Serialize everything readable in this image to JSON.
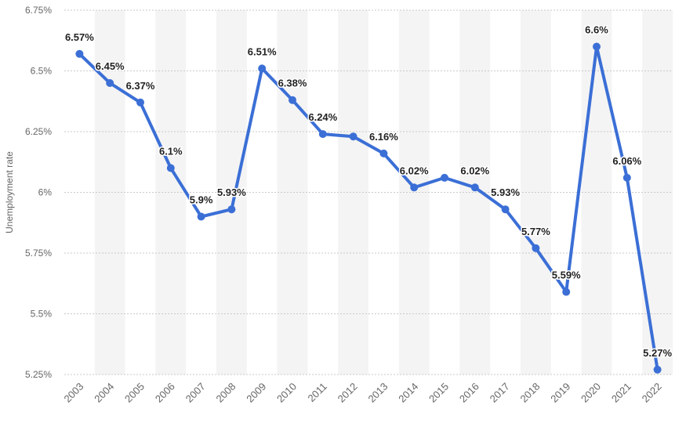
{
  "chart_data": {
    "type": "line",
    "title": "",
    "xlabel": "",
    "ylabel": "Unemployment rate",
    "x": [
      "2003",
      "2004",
      "2005",
      "2006",
      "2007",
      "2008",
      "2009",
      "2010",
      "2011",
      "2012",
      "2013",
      "2014",
      "2015",
      "2016",
      "2017",
      "2018",
      "2019",
      "2020",
      "2021",
      "2022"
    ],
    "series": [
      {
        "values": [
          6.57,
          6.45,
          6.37,
          6.1,
          5.9,
          5.93,
          6.51,
          6.38,
          6.24,
          6.23,
          6.16,
          6.02,
          6.06,
          6.02,
          5.93,
          5.77,
          5.59,
          6.6,
          6.06,
          5.27
        ],
        "labels": [
          "6.57%",
          "6.45%",
          "6.37%",
          "6.1%",
          "5.9%",
          "5.93%",
          "6.51%",
          "6.38%",
          "6.24%",
          "",
          "6.16%",
          "6.02%",
          "",
          "6.02%",
          "5.93%",
          "5.77%",
          "5.59%",
          "6.6%",
          "6.06%",
          "5.27%"
        ]
      }
    ],
    "ylim": [
      5.25,
      6.75
    ],
    "yticks": [
      6.75,
      6.5,
      6.25,
      6.0,
      5.75,
      5.5,
      5.25
    ],
    "ytick_labels": [
      "6.75%",
      "6.5%",
      "6.25%",
      "6%",
      "5.75%",
      "5.5%",
      "5.25%"
    ],
    "grid": true,
    "legend": "none",
    "colors": {
      "line": "#3b6fd6",
      "grid": "#c9c9c9",
      "band": "#f4f4f4",
      "tick_text": "#666666",
      "label_text": "#222222"
    }
  }
}
